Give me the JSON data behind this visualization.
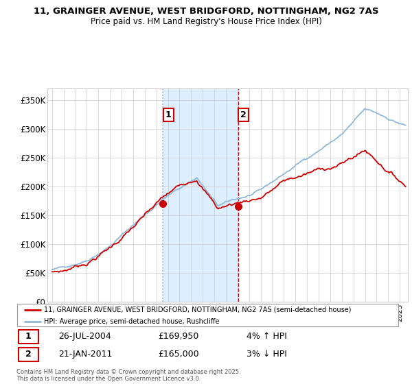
{
  "title_line1": "11, GRAINGER AVENUE, WEST BRIDGFORD, NOTTINGHAM, NG2 7AS",
  "title_line2": "Price paid vs. HM Land Registry's House Price Index (HPI)",
  "background_color": "#ffffff",
  "plot_bg_color": "#ffffff",
  "grid_color": "#cccccc",
  "sale1_date": "26-JUL-2004",
  "sale1_price": 169950,
  "sale1_pct": "4% ↑ HPI",
  "sale2_date": "21-JAN-2011",
  "sale2_price": 165000,
  "sale2_pct": "3% ↓ HPI",
  "legend_label1": "11, GRAINGER AVENUE, WEST BRIDGFORD, NOTTINGHAM, NG2 7AS (semi-detached house)",
  "legend_label2": "HPI: Average price, semi-detached house, Rushcliffe",
  "footer": "Contains HM Land Registry data © Crown copyright and database right 2025.\nThis data is licensed under the Open Government Licence v3.0.",
  "hpi_color": "#90b8d8",
  "price_color": "#cc0000",
  "shading_color": "#ddeeff",
  "ylim": [
    0,
    370000
  ],
  "yticks": [
    0,
    50000,
    100000,
    150000,
    200000,
    250000,
    300000,
    350000
  ],
  "ytick_labels": [
    "£0",
    "£50K",
    "£100K",
    "£150K",
    "£200K",
    "£250K",
    "£300K",
    "£350K"
  ],
  "sale1_year": 2004.57,
  "sale2_year": 2011.06,
  "xlim_left": 1994.6,
  "xlim_right": 2025.7
}
